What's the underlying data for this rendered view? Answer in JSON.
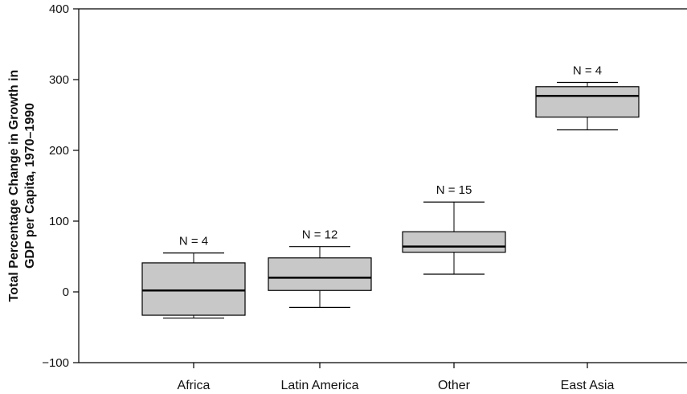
{
  "chart_data": {
    "type": "box",
    "ylabel_line1": "Total Percentage Change in Growth in",
    "ylabel_line2": "GDP per Capita, 1970–1990",
    "xlabel": "",
    "ylim": [
      -100,
      400
    ],
    "yticks": [
      -100,
      0,
      100,
      200,
      300,
      400
    ],
    "ytick_labels": [
      "−100",
      "0",
      "100",
      "200",
      "300",
      "400"
    ],
    "grid": false,
    "legend": "none",
    "box_fill": "#c8c8c8",
    "categories": [
      "Africa",
      "Latin America",
      "Other",
      "East Asia"
    ],
    "boxes": [
      {
        "category": "Africa",
        "n_label": "N = 4",
        "whisker_low": -37,
        "q1": -33,
        "median": 2,
        "q3": 41,
        "whisker_high": 55
      },
      {
        "category": "Latin America",
        "n_label": "N = 12",
        "whisker_low": -22,
        "q1": 2,
        "median": 20,
        "q3": 48,
        "whisker_high": 64
      },
      {
        "category": "Other",
        "n_label": "N = 15",
        "whisker_low": 25,
        "q1": 56,
        "median": 64,
        "q3": 85,
        "whisker_high": 127
      },
      {
        "category": "East Asia",
        "n_label": "N = 4",
        "whisker_low": 229,
        "q1": 247,
        "median": 277,
        "q3": 290,
        "whisker_high": 296
      }
    ]
  }
}
